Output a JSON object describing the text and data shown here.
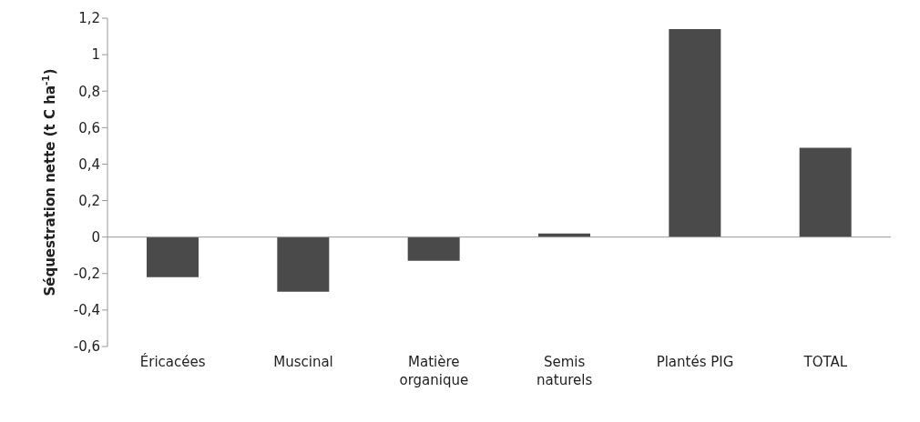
{
  "chart_data": {
    "type": "bar",
    "ylabel": "Séquestration nette (t C ha$^{-1}$)",
    "categories": [
      "Éricacées",
      "Muscinal",
      "Matière organique",
      "Semis naturels",
      "Plantés PIG",
      "TOTAL"
    ],
    "values": [
      -0.22,
      -0.3,
      -0.13,
      0.02,
      1.14,
      0.49
    ],
    "color": "#4a4a4a",
    "ylim": [
      -0.6,
      1.2
    ],
    "yticks": [
      {
        "value": -0.6,
        "label": "-0,6"
      },
      {
        "value": -0.4,
        "label": "-0,4"
      },
      {
        "value": -0.2,
        "label": "-0,2"
      },
      {
        "value": 0,
        "label": "0"
      },
      {
        "value": 0.2,
        "label": "0,2"
      },
      {
        "value": 0.4,
        "label": "0,4"
      },
      {
        "value": 0.6,
        "label": "0,6"
      },
      {
        "value": 0.8,
        "label": "0,8"
      },
      {
        "value": 1,
        "label": "1"
      },
      {
        "value": 1.2,
        "label": "1,2"
      }
    ],
    "legend": false
  }
}
